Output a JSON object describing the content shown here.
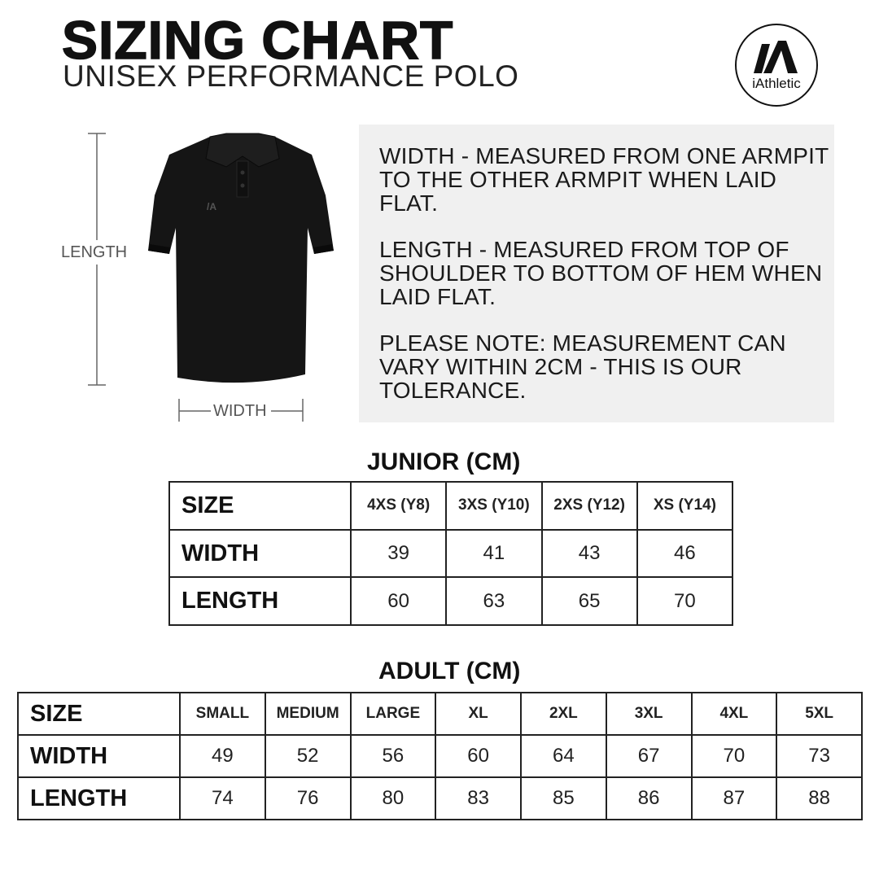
{
  "header": {
    "title": "SIZING CHART",
    "subtitle": "UNISEX PERFORMANCE POLO"
  },
  "logo": {
    "brand": "iAthletic",
    "mark": "iA"
  },
  "diagram": {
    "length_label": "LENGTH",
    "width_label": "WIDTH"
  },
  "info": [
    "WIDTH - MEASURED FROM ONE ARMPIT TO THE OTHER ARMPIT WHEN LAID FLAT.",
    "LENGTH - MEASURED FROM TOP OF SHOULDER TO BOTTOM OF HEM WHEN LAID FLAT.",
    "PLEASE NOTE: MEASUREMENT CAN VARY WITHIN 2CM - THIS IS OUR TOLERANCE."
  ],
  "junior": {
    "title": "JUNIOR (CM)",
    "rows": [
      [
        "SIZE",
        "4XS (Y8)",
        "3XS (Y10)",
        "2XS (Y12)",
        "XS (Y14)"
      ],
      [
        "WIDTH",
        "39",
        "41",
        "43",
        "46"
      ],
      [
        "LENGTH",
        "60",
        "63",
        "65",
        "70"
      ]
    ]
  },
  "adult": {
    "title": "ADULT (CM)",
    "rows": [
      [
        "SIZE",
        "SMALL",
        "MEDIUM",
        "LARGE",
        "XL",
        "2XL",
        "3XL",
        "4XL",
        "5XL"
      ],
      [
        "WIDTH",
        "49",
        "52",
        "56",
        "60",
        "64",
        "67",
        "70",
        "73"
      ],
      [
        "LENGTH",
        "74",
        "76",
        "80",
        "83",
        "85",
        "86",
        "87",
        "88"
      ]
    ]
  }
}
